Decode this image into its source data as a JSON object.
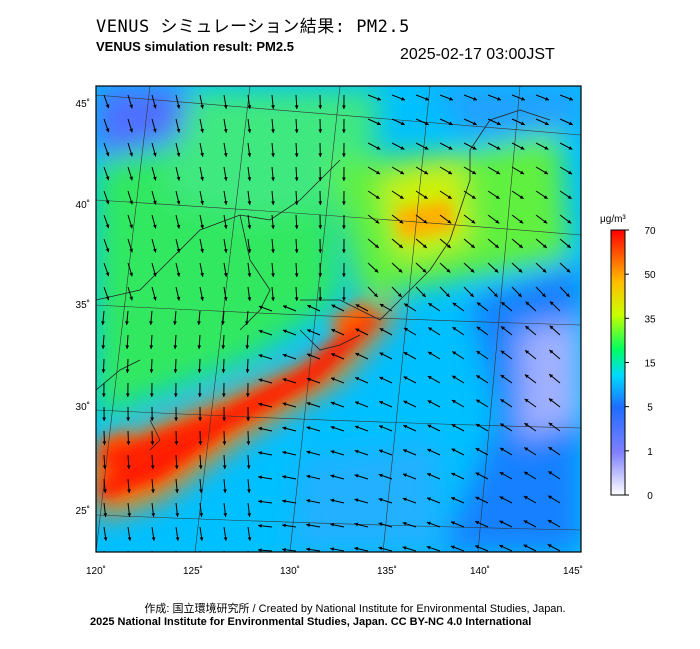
{
  "header": {
    "title_jp": "VENUS シミュレーション結果: PM2.5",
    "title_en": "VENUS simulation result: PM2.5",
    "timestamp": "2025-02-17 03:00JST"
  },
  "map": {
    "lon_range": [
      120,
      145
    ],
    "lat_range": [
      23,
      46
    ],
    "lon_ticks": [
      "120˚",
      "125˚",
      "130˚",
      "135˚",
      "140˚",
      "145˚"
    ],
    "lat_ticks": [
      "25˚",
      "30˚",
      "35˚",
      "40˚",
      "45˚"
    ]
  },
  "legend": {
    "unit": "μg/m³",
    "ticks": [
      "0",
      "1",
      "5",
      "15",
      "35",
      "50",
      "70"
    ],
    "colors": [
      "#ffffff",
      "#8080ff",
      "#1f6cff",
      "#00d8ff",
      "#00ff60",
      "#c8ff00",
      "#ffc000",
      "#ff0000"
    ]
  },
  "footer": {
    "credit_line1": "作成: 国立環境研究所 / Created by National Institute for Environmental Studies, Japan.",
    "credit_line2": "2025 National Institute for Environmental Studies, Japan. CC BY-NC 4.0 International"
  }
}
